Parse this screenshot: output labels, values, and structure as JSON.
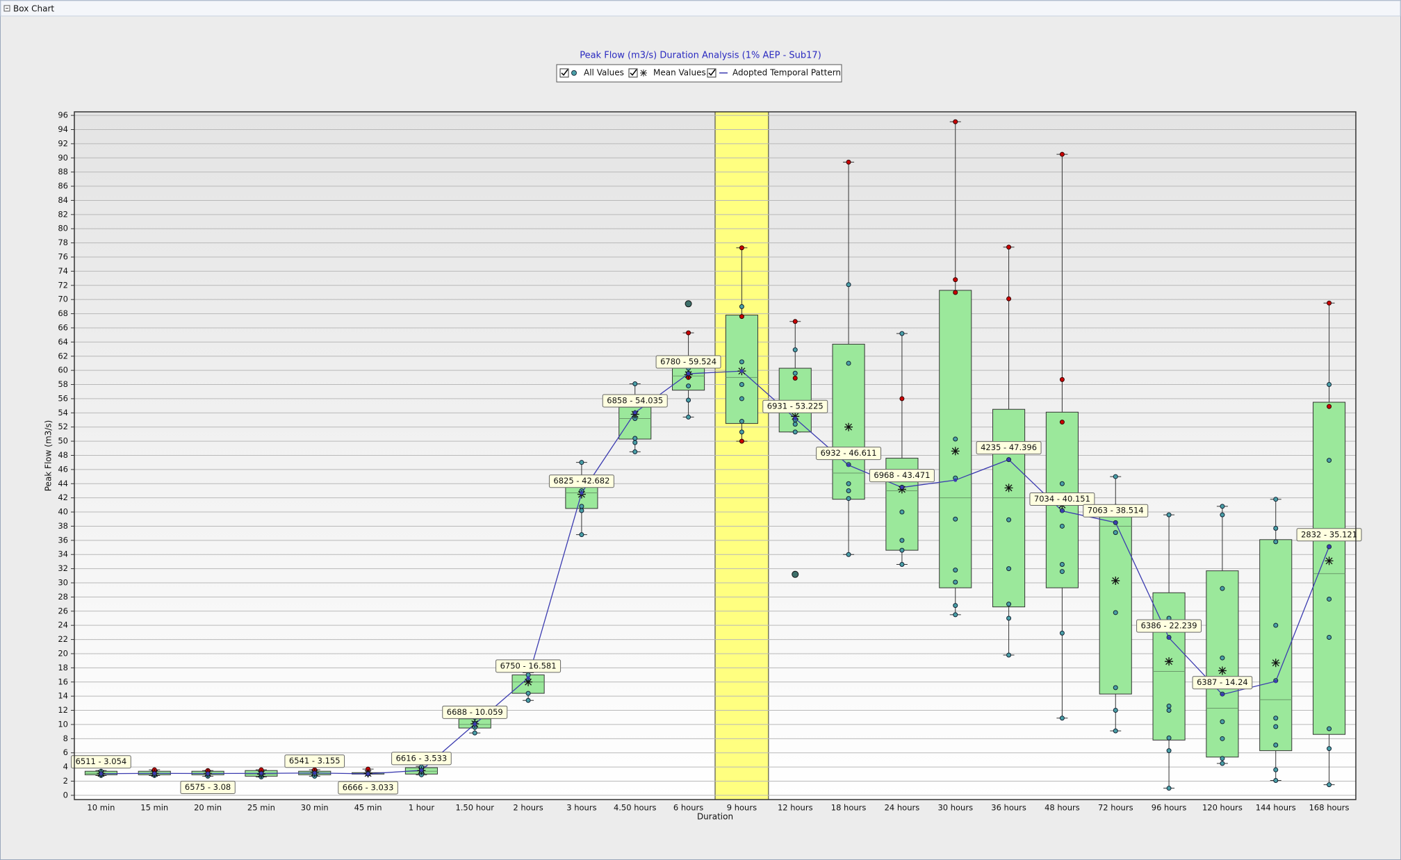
{
  "window_title": "Box Chart",
  "chart_data": {
    "type": "box",
    "title": "Peak Flow (m3/s) Duration Analysis (1% AEP - Sub17)",
    "x_label": "Duration",
    "y_label": "Peak Flow (m3/s)",
    "legend": {
      "points": "All Values",
      "mean": "Mean Values",
      "adopted": "Adopted Temporal Pattern"
    },
    "categories": [
      "10 min",
      "15 min",
      "20 min",
      "25 min",
      "30 min",
      "45 min",
      "1 hour",
      "1.50 hour",
      "2 hours",
      "3 hours",
      "4.50 hours",
      "6 hours",
      "9 hours",
      "12 hours",
      "18 hours",
      "24 hours",
      "30 hours",
      "36 hours",
      "48 hours",
      "72 hours",
      "96 hours",
      "120 hours",
      "144 hours",
      "168 hours"
    ],
    "ylim": [
      -0.6,
      96.5
    ],
    "yticks": [
      0,
      2,
      4,
      6,
      8,
      10,
      12,
      14,
      16,
      18,
      20,
      22,
      24,
      26,
      28,
      30,
      32,
      34,
      36,
      38,
      40,
      42,
      44,
      46,
      48,
      50,
      52,
      54,
      56,
      58,
      60,
      62,
      64,
      66,
      68,
      70,
      72,
      74,
      76,
      78,
      80,
      82,
      84,
      86,
      88,
      90,
      92,
      94,
      96
    ],
    "grid": true,
    "highlight_index": 12,
    "highlight_color": "#ffff80",
    "box_color": "#9be89b",
    "point_color": "#4aa0a8",
    "flagged_color": "#cc0000",
    "outlier_color": "#3d6f6a",
    "boxes": [
      {
        "low": 2.8,
        "q1": 2.9,
        "median": 3.1,
        "q3": 3.4,
        "high": 3.5,
        "mean": 3.1,
        "points": [
          2.8,
          3.0,
          3.2,
          3.4
        ],
        "flagged": [],
        "outliers": []
      },
      {
        "low": 2.8,
        "q1": 2.9,
        "median": 3.1,
        "q3": 3.4,
        "high": 3.6,
        "mean": 3.1,
        "points": [
          2.8,
          3.0,
          3.3
        ],
        "flagged": [
          3.6
        ],
        "outliers": []
      },
      {
        "low": 2.7,
        "q1": 2.9,
        "median": 3.1,
        "q3": 3.4,
        "high": 3.5,
        "mean": 3.1,
        "points": [
          2.7,
          3.0,
          3.3
        ],
        "flagged": [
          3.5
        ],
        "outliers": []
      },
      {
        "low": 2.6,
        "q1": 2.7,
        "median": 3.0,
        "q3": 3.5,
        "high": 3.6,
        "mean": 3.0,
        "points": [
          2.6,
          2.9,
          3.2
        ],
        "flagged": [
          3.6
        ],
        "outliers": []
      },
      {
        "low": 2.7,
        "q1": 2.9,
        "median": 3.1,
        "q3": 3.4,
        "high": 3.6,
        "mean": 3.2,
        "points": [
          2.7,
          3.0,
          3.3
        ],
        "flagged": [
          3.6
        ],
        "outliers": []
      },
      {
        "low": 3.0,
        "q1": 3.0,
        "median": 3.1,
        "q3": 3.2,
        "high": 3.7,
        "mean": 3.1,
        "points": [
          3.0,
          3.1
        ],
        "flagged": [
          3.7
        ],
        "outliers": []
      },
      {
        "low": 2.9,
        "q1": 3.0,
        "median": 3.4,
        "q3": 3.9,
        "high": 4.1,
        "mean": 3.5,
        "points": [
          2.9,
          3.3,
          3.6,
          4.0
        ],
        "flagged": [],
        "outliers": []
      },
      {
        "low": 8.8,
        "q1": 9.5,
        "median": 10.0,
        "q3": 10.8,
        "high": 12.3,
        "mean": 10.1,
        "points": [
          8.8,
          9.6,
          10.2,
          11.0
        ],
        "flagged": [],
        "outliers": []
      },
      {
        "low": 13.4,
        "q1": 14.4,
        "median": 16.0,
        "q3": 17.0,
        "high": 17.3,
        "mean": 16.0,
        "points": [
          13.4,
          14.4,
          16.3,
          17.0
        ],
        "flagged": [],
        "outliers": []
      },
      {
        "low": 36.8,
        "q1": 40.5,
        "median": 42.7,
        "q3": 43.5,
        "high": 47.0,
        "mean": 42.5,
        "points": [
          36.8,
          40.2,
          40.8,
          43.0,
          47.0
        ],
        "flagged": [],
        "outliers": []
      },
      {
        "low": 48.5,
        "q1": 50.3,
        "median": 53.2,
        "q3": 54.8,
        "high": 58.1,
        "mean": 53.8,
        "points": [
          48.5,
          49.8,
          50.4,
          53.2,
          54.0,
          58.1
        ],
        "flagged": [],
        "outliers": []
      },
      {
        "low": 53.4,
        "q1": 57.2,
        "median": 59.2,
        "q3": 60.3,
        "high": 65.3,
        "mean": 59.4,
        "points": [
          53.4,
          55.8,
          57.8,
          59.6,
          60.3
        ],
        "flagged": [
          59.0,
          65.3
        ],
        "outliers": [
          69.4
        ]
      },
      {
        "low": 50.0,
        "q1": 52.5,
        "median": 59.0,
        "q3": 67.8,
        "high": 77.3,
        "mean": 59.9,
        "points": [
          51.3,
          52.8,
          56.0,
          58.0,
          61.2,
          69.0
        ],
        "flagged": [
          50.0,
          67.6,
          77.3
        ],
        "outliers": []
      },
      {
        "low": 51.3,
        "q1": 51.3,
        "median": 55.0,
        "q3": 60.3,
        "high": 66.9,
        "mean": 53.5,
        "points": [
          51.3,
          52.4,
          53.0,
          59.6,
          62.9
        ],
        "flagged": [
          58.9,
          66.9
        ],
        "outliers": [
          31.2
        ]
      },
      {
        "low": 34.0,
        "q1": 41.8,
        "median": 45.5,
        "q3": 63.7,
        "high": 89.4,
        "mean": 52.0,
        "points": [
          34.0,
          41.9,
          43.0,
          44.0,
          46.7,
          61.0,
          72.1
        ],
        "flagged": [
          89.4
        ],
        "outliers": []
      },
      {
        "low": 32.6,
        "q1": 34.6,
        "median": 43.0,
        "q3": 47.6,
        "high": 65.2,
        "mean": 43.2,
        "points": [
          32.6,
          34.6,
          36.0,
          40.0,
          43.5,
          65.2
        ],
        "flagged": [
          56.0
        ],
        "outliers": []
      },
      {
        "low": 25.5,
        "q1": 29.3,
        "median": 42.0,
        "q3": 71.3,
        "high": 95.1,
        "mean": 48.6,
        "points": [
          25.5,
          26.8,
          30.1,
          31.8,
          39.0,
          44.8,
          50.3
        ],
        "flagged": [
          71.0,
          72.8,
          95.1
        ],
        "outliers": []
      },
      {
        "low": 19.8,
        "q1": 26.6,
        "median": 42.0,
        "q3": 54.5,
        "high": 77.4,
        "mean": 43.4,
        "points": [
          19.8,
          25.0,
          27.0,
          32.0,
          38.9,
          47.4
        ],
        "flagged": [
          70.1,
          77.4
        ],
        "outliers": []
      },
      {
        "low": 10.9,
        "q1": 29.3,
        "median": 41.0,
        "q3": 54.1,
        "high": 90.5,
        "mean": 41.0,
        "points": [
          10.9,
          22.9,
          31.6,
          32.6,
          38.0,
          40.2,
          44.0
        ],
        "flagged": [
          52.7,
          58.7,
          90.5
        ],
        "outliers": []
      },
      {
        "low": 9.1,
        "q1": 14.3,
        "median": 38.0,
        "q3": 40.7,
        "high": 45.0,
        "mean": 30.3,
        "points": [
          9.1,
          12.0,
          15.2,
          25.8,
          37.1,
          38.5,
          40.8,
          45.0
        ],
        "flagged": [],
        "outliers": []
      },
      {
        "low": 1.0,
        "q1": 7.8,
        "median": 17.5,
        "q3": 28.6,
        "high": 39.6,
        "mean": 18.9,
        "points": [
          1.0,
          6.3,
          8.1,
          12.0,
          12.6,
          22.3,
          25.0,
          39.6
        ],
        "flagged": [],
        "outliers": []
      },
      {
        "low": 4.5,
        "q1": 5.4,
        "median": 12.3,
        "q3": 31.7,
        "high": 40.8,
        "mean": 17.6,
        "points": [
          4.5,
          5.2,
          8.0,
          10.4,
          14.3,
          19.4,
          29.2,
          39.6,
          40.8
        ],
        "flagged": [],
        "outliers": []
      },
      {
        "low": 2.1,
        "q1": 6.3,
        "median": 13.5,
        "q3": 36.1,
        "high": 41.8,
        "mean": 18.7,
        "points": [
          2.1,
          3.6,
          7.1,
          9.7,
          10.9,
          16.2,
          24.0,
          35.8,
          37.7,
          41.8
        ],
        "flagged": [],
        "outliers": []
      },
      {
        "low": 1.5,
        "q1": 8.6,
        "median": 31.3,
        "q3": 55.5,
        "high": 69.5,
        "mean": 33.1,
        "points": [
          1.5,
          6.6,
          9.4,
          22.3,
          27.7,
          35.1,
          47.3,
          58.0
        ],
        "flagged": [
          54.9,
          69.5
        ],
        "outliers": []
      }
    ],
    "adopted": {
      "name": "Adopted Temporal Pattern",
      "color": "#3b3bb0",
      "values": [
        3.054,
        3.1,
        3.08,
        3.1,
        3.155,
        3.033,
        3.533,
        10.059,
        16.581,
        42.682,
        54.035,
        59.524,
        59.9,
        53.225,
        46.611,
        43.471,
        44.5,
        47.396,
        40.151,
        38.514,
        22.239,
        14.24,
        16.1,
        35.121
      ],
      "value_labels": [
        "6511 - 3.054",
        null,
        "6575 - 3.08",
        null,
        "6541 - 3.155",
        "6666 - 3.033",
        "6616 - 3.533",
        "6688 - 10.059",
        "6750 - 16.581",
        "6825 - 42.682",
        "6858 - 54.035",
        "6780 - 59.524",
        null,
        "6931 - 53.225",
        "6932 - 46.611",
        "6968 - 43.471",
        null,
        "4235 - 47.396",
        "7034 - 40.151",
        "7063 - 38.514",
        "6386 - 22.239",
        "6387 - 14.24",
        null,
        "2832 - 35.121"
      ]
    }
  }
}
